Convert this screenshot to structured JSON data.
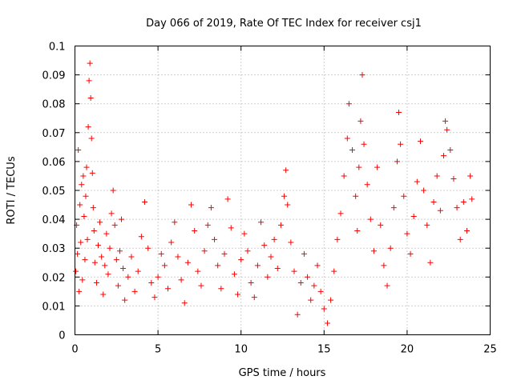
{
  "chart_data": {
    "type": "scatter",
    "title": "Day 066 of 2019, Rate Of TEC Index for receiver csj1",
    "xlabel": "GPS time / hours",
    "ylabel": "ROTI / TECUs",
    "xlim": [
      0,
      25
    ],
    "ylim": [
      0,
      0.1
    ],
    "xticks": [
      0,
      5,
      10,
      15,
      20,
      25
    ],
    "xtick_labels": [
      "0",
      "5",
      "10",
      "15",
      "20",
      "25"
    ],
    "yticks": [
      0,
      0.01,
      0.02,
      0.03,
      0.04,
      0.05,
      0.06,
      0.07,
      0.08,
      0.09,
      0.1
    ],
    "ytick_labels": [
      "0",
      "0.01",
      "0.02",
      "0.03",
      "0.04",
      "0.05",
      "0.06",
      "0.07",
      "0.08",
      "0.09",
      "0.1"
    ],
    "grid": true,
    "marker": "+",
    "color": "#ff0000",
    "series": [
      {
        "name": "ROTI",
        "points": [
          [
            0.05,
            0.022
          ],
          [
            0.1,
            0.038
          ],
          [
            0.15,
            0.028
          ],
          [
            0.2,
            0.064
          ],
          [
            0.25,
            0.015
          ],
          [
            0.3,
            0.045
          ],
          [
            0.35,
            0.032
          ],
          [
            0.4,
            0.052
          ],
          [
            0.45,
            0.019
          ],
          [
            0.5,
            0.055
          ],
          [
            0.55,
            0.041
          ],
          [
            0.6,
            0.026
          ],
          [
            0.65,
            0.048
          ],
          [
            0.7,
            0.058
          ],
          [
            0.75,
            0.033
          ],
          [
            0.8,
            0.072
          ],
          [
            0.85,
            0.088
          ],
          [
            0.9,
            0.094
          ],
          [
            0.95,
            0.082
          ],
          [
            1.0,
            0.068
          ],
          [
            1.05,
            0.056
          ],
          [
            1.1,
            0.044
          ],
          [
            1.15,
            0.036
          ],
          [
            1.2,
            0.025
          ],
          [
            1.3,
            0.018
          ],
          [
            1.4,
            0.031
          ],
          [
            1.5,
            0.039
          ],
          [
            1.6,
            0.027
          ],
          [
            1.7,
            0.014
          ],
          [
            1.8,
            0.024
          ],
          [
            1.9,
            0.035
          ],
          [
            2.0,
            0.021
          ],
          [
            2.1,
            0.03
          ],
          [
            2.2,
            0.042
          ],
          [
            2.3,
            0.05
          ],
          [
            2.4,
            0.038
          ],
          [
            2.5,
            0.026
          ],
          [
            2.6,
            0.017
          ],
          [
            2.7,
            0.029
          ],
          [
            2.8,
            0.04
          ],
          [
            2.9,
            0.023
          ],
          [
            3.0,
            0.012
          ],
          [
            3.2,
            0.02
          ],
          [
            3.4,
            0.027
          ],
          [
            3.6,
            0.015
          ],
          [
            3.8,
            0.022
          ],
          [
            4.0,
            0.034
          ],
          [
            4.2,
            0.046
          ],
          [
            4.4,
            0.03
          ],
          [
            4.6,
            0.018
          ],
          [
            4.8,
            0.013
          ],
          [
            5.0,
            0.02
          ],
          [
            5.2,
            0.028
          ],
          [
            5.4,
            0.024
          ],
          [
            5.6,
            0.016
          ],
          [
            5.8,
            0.032
          ],
          [
            6.0,
            0.039
          ],
          [
            6.2,
            0.027
          ],
          [
            6.4,
            0.019
          ],
          [
            6.6,
            0.011
          ],
          [
            6.8,
            0.025
          ],
          [
            7.0,
            0.045
          ],
          [
            7.2,
            0.036
          ],
          [
            7.4,
            0.022
          ],
          [
            7.6,
            0.017
          ],
          [
            7.8,
            0.029
          ],
          [
            8.0,
            0.038
          ],
          [
            8.2,
            0.044
          ],
          [
            8.4,
            0.033
          ],
          [
            8.6,
            0.024
          ],
          [
            8.8,
            0.016
          ],
          [
            9.0,
            0.028
          ],
          [
            9.2,
            0.047
          ],
          [
            9.4,
            0.037
          ],
          [
            9.6,
            0.021
          ],
          [
            9.8,
            0.014
          ],
          [
            10.0,
            0.026
          ],
          [
            10.2,
            0.035
          ],
          [
            10.4,
            0.029
          ],
          [
            10.6,
            0.018
          ],
          [
            10.8,
            0.013
          ],
          [
            11.0,
            0.024
          ],
          [
            11.2,
            0.039
          ],
          [
            11.4,
            0.031
          ],
          [
            11.6,
            0.02
          ],
          [
            11.8,
            0.027
          ],
          [
            12.0,
            0.033
          ],
          [
            12.2,
            0.023
          ],
          [
            12.4,
            0.038
          ],
          [
            12.6,
            0.048
          ],
          [
            12.7,
            0.057
          ],
          [
            12.8,
            0.045
          ],
          [
            13.0,
            0.032
          ],
          [
            13.2,
            0.022
          ],
          [
            13.4,
            0.007
          ],
          [
            13.6,
            0.018
          ],
          [
            13.8,
            0.028
          ],
          [
            14.0,
            0.02
          ],
          [
            14.2,
            0.012
          ],
          [
            14.4,
            0.017
          ],
          [
            14.6,
            0.024
          ],
          [
            14.8,
            0.015
          ],
          [
            15.0,
            0.009
          ],
          [
            15.2,
            0.004
          ],
          [
            15.4,
            0.012
          ],
          [
            15.6,
            0.022
          ],
          [
            15.8,
            0.033
          ],
          [
            16.0,
            0.042
          ],
          [
            16.2,
            0.055
          ],
          [
            16.4,
            0.068
          ],
          [
            16.5,
            0.08
          ],
          [
            16.7,
            0.064
          ],
          [
            16.9,
            0.048
          ],
          [
            17.0,
            0.036
          ],
          [
            17.1,
            0.058
          ],
          [
            17.2,
            0.074
          ],
          [
            17.3,
            0.09
          ],
          [
            17.4,
            0.066
          ],
          [
            17.6,
            0.052
          ],
          [
            17.8,
            0.04
          ],
          [
            18.0,
            0.029
          ],
          [
            18.2,
            0.058
          ],
          [
            18.4,
            0.038
          ],
          [
            18.6,
            0.024
          ],
          [
            18.8,
            0.017
          ],
          [
            19.0,
            0.03
          ],
          [
            19.2,
            0.044
          ],
          [
            19.4,
            0.06
          ],
          [
            19.5,
            0.077
          ],
          [
            19.6,
            0.066
          ],
          [
            19.8,
            0.048
          ],
          [
            20.0,
            0.035
          ],
          [
            20.2,
            0.028
          ],
          [
            20.4,
            0.041
          ],
          [
            20.6,
            0.053
          ],
          [
            20.8,
            0.067
          ],
          [
            21.0,
            0.05
          ],
          [
            21.2,
            0.038
          ],
          [
            21.4,
            0.025
          ],
          [
            21.6,
            0.046
          ],
          [
            21.8,
            0.055
          ],
          [
            22.0,
            0.043
          ],
          [
            22.2,
            0.062
          ],
          [
            22.3,
            0.074
          ],
          [
            22.4,
            0.071
          ],
          [
            22.6,
            0.064
          ],
          [
            22.8,
            0.054
          ],
          [
            23.0,
            0.044
          ],
          [
            23.2,
            0.033
          ],
          [
            23.4,
            0.046
          ],
          [
            23.6,
            0.036
          ],
          [
            23.8,
            0.055
          ],
          [
            23.9,
            0.047
          ]
        ]
      }
    ]
  }
}
